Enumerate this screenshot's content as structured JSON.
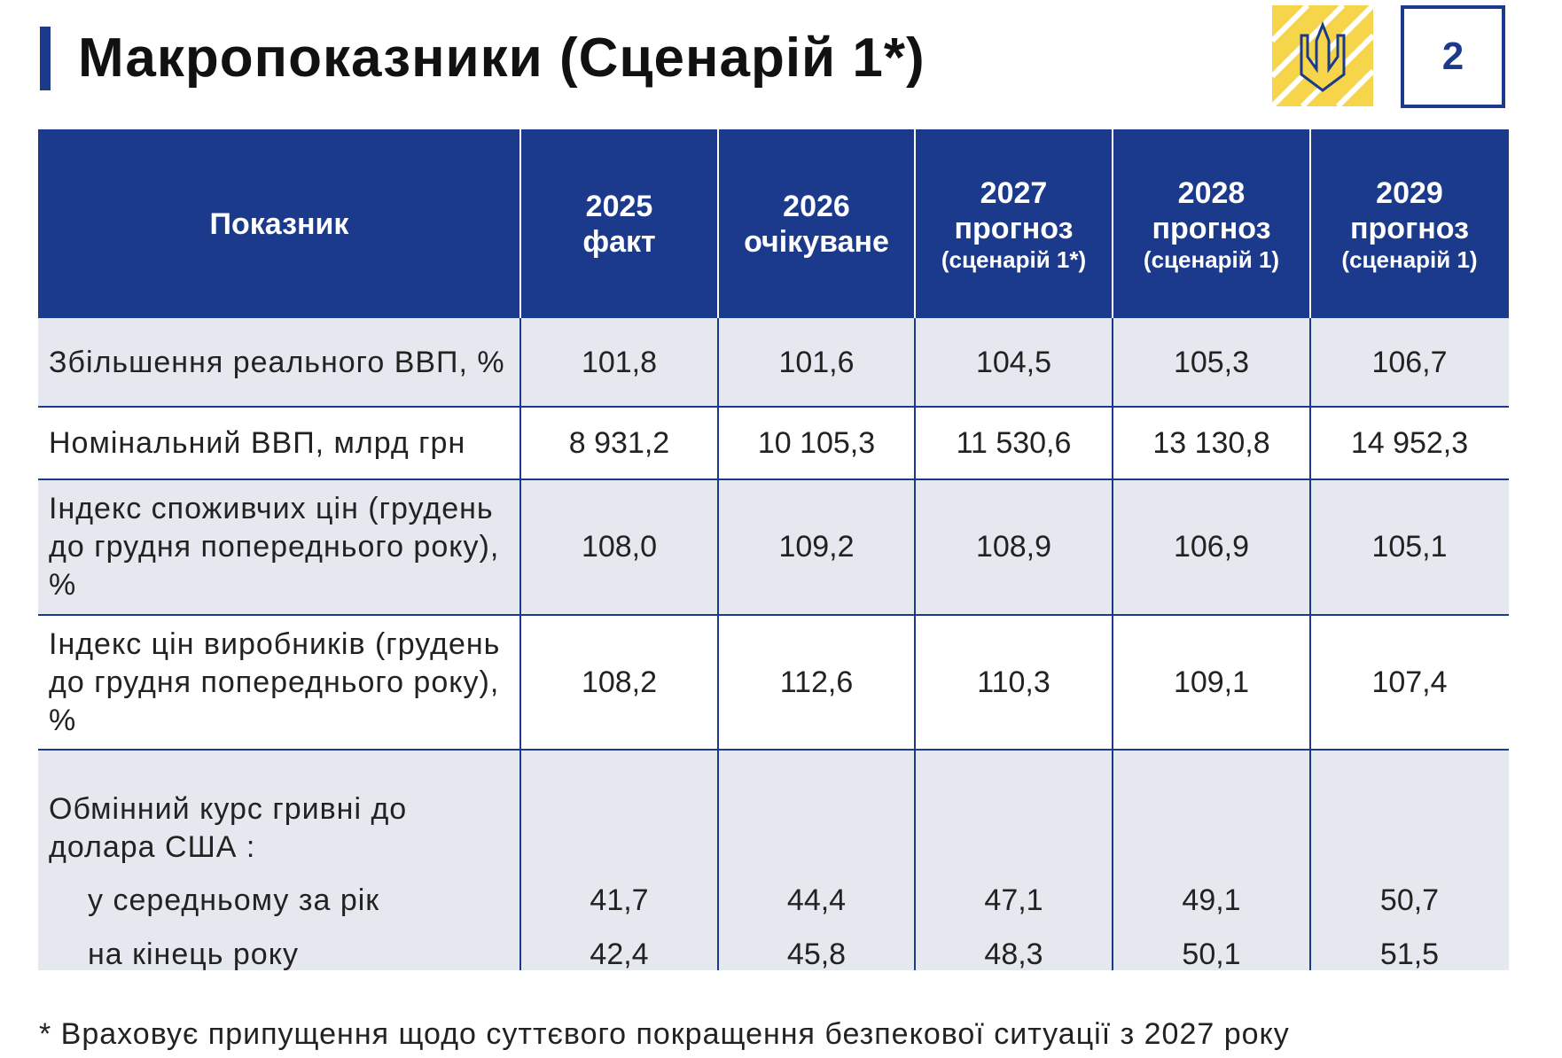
{
  "header": {
    "title": "Макропоказники (Сценарій 1*)",
    "page_number": "2"
  },
  "table": {
    "columns": [
      {
        "label": "Показник"
      },
      {
        "year": "2025",
        "status": "факт"
      },
      {
        "year": "2026",
        "status": "очікуване"
      },
      {
        "year": "2027",
        "status": "прогноз",
        "note": "(сценарій 1*)"
      },
      {
        "year": "2028",
        "status": "прогноз",
        "note": "(сценарій 1)"
      },
      {
        "year": "2029",
        "status": "прогноз",
        "note": "(сценарій 1)"
      }
    ],
    "rows": [
      {
        "label": "Збільшення реального ВВП, %",
        "values": [
          "101,8",
          "101,6",
          "104,5",
          "105,3",
          "106,7"
        ]
      },
      {
        "label": "Номінальний ВВП, млрд грн",
        "values": [
          "8 931,2",
          "10 105,3",
          "11 530,6",
          "13 130,8",
          "14 952,3"
        ]
      },
      {
        "label": "Індекс споживчих цін (грудень до грудня попереднього року), %",
        "values": [
          "108,0",
          "109,2",
          "108,9",
          "106,9",
          "105,1"
        ]
      },
      {
        "label": "Індекс цін виробників (грудень до грудня попереднього року), %",
        "values": [
          "108,2",
          "112,6",
          "110,3",
          "109,1",
          "107,4"
        ]
      }
    ],
    "exchange": {
      "label": "Обмінний курс гривні до долара США :",
      "rows": [
        {
          "label": "у середньому за рік",
          "values": [
            "41,7",
            "44,4",
            "47,1",
            "49,1",
            "50,7"
          ]
        },
        {
          "label": "на кінець року",
          "values": [
            "42,4",
            "45,8",
            "48,3",
            "50,1",
            "51,5"
          ]
        }
      ]
    }
  },
  "footnote": "* Враховує припущення щодо суттєвого покращення безпекової ситуації з 2027 року"
}
